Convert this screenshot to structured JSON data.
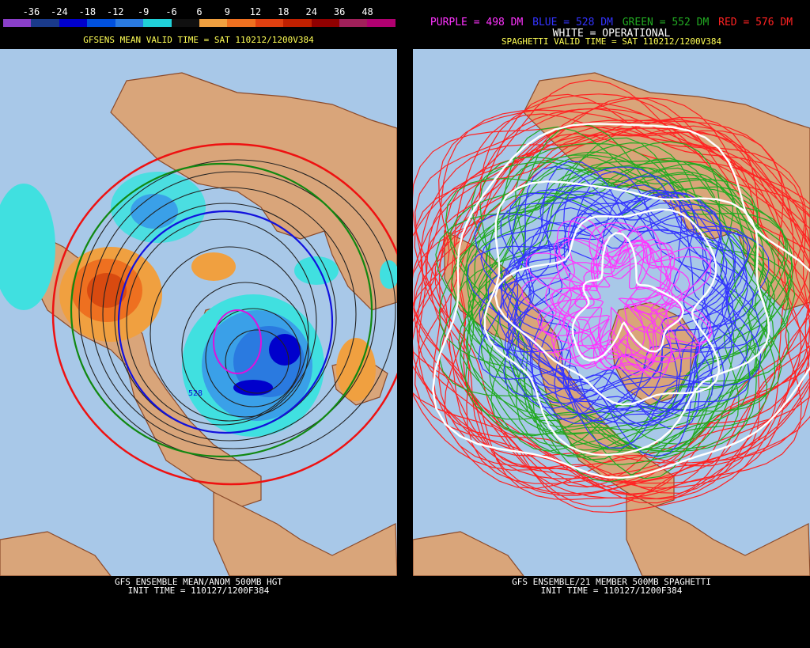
{
  "left": {
    "colorbar": {
      "labels": [
        "-36",
        "-24",
        "-18",
        "-12",
        "-9",
        "-6",
        "6",
        "9",
        "12",
        "18",
        "24",
        "36",
        "48"
      ],
      "colors": [
        "#8a3fc8",
        "#1a3a8a",
        "#0000cc",
        "#0050dd",
        "#2a7ae0",
        "#20d0d8",
        "#101010",
        "#f0a040",
        "#ee7020",
        "#e04010",
        "#c02000",
        "#900000",
        "#a0205a",
        "#b00070"
      ]
    },
    "header": "GFSENS MEAN VALID TIME = SAT 110212/1200V384",
    "contour_label": "528",
    "footer_line1": "GFS ENSEMBLE MEAN/ANOM 500MB HGT",
    "footer_line2": "INIT TIME = 110127/1200F384"
  },
  "right": {
    "legend": {
      "purple": "PURPLE = 498 DM",
      "blue": "BLUE = 528 DM",
      "green": "GREEN = 552 DM",
      "red": "RED = 576 DM",
      "white": "WHITE = OPERATIONAL"
    },
    "legend_colors": {
      "purple": "#ff33ff",
      "blue": "#3333ff",
      "green": "#22aa22",
      "red": "#ff2222"
    },
    "header": "SPAGHETTI VALID TIME = SAT 110212/1200V384",
    "footer_line1": "GFS ENSEMBLE/21 MEMBER 500MB SPAGHETTI",
    "footer_line2": "INIT TIME = 110127/1200F384"
  },
  "colors": {
    "ocean": "#a8c8e8",
    "land": "#d9a57a",
    "coast": "#8b4a2a"
  }
}
